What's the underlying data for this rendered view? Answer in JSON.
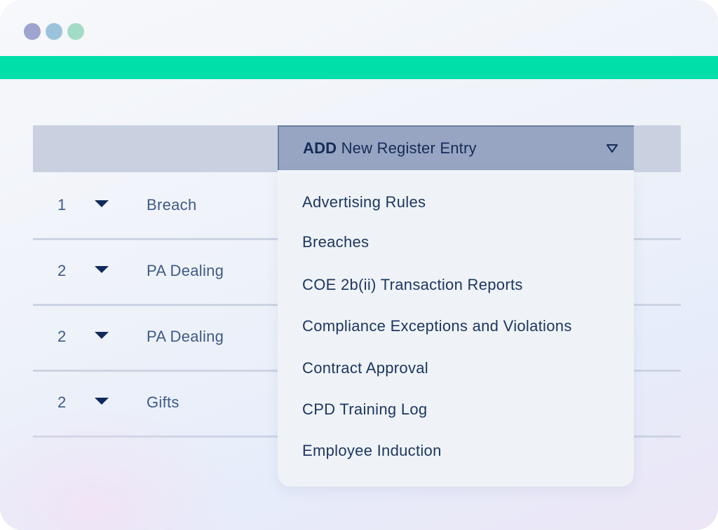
{
  "register_table": {
    "rows": [
      {
        "number": "1",
        "name": "Breach"
      },
      {
        "number": "2",
        "name": "PA Dealing"
      },
      {
        "number": "2",
        "name": "PA Dealing"
      },
      {
        "number": "2",
        "name": "Gifts"
      }
    ]
  },
  "add_dropdown": {
    "bold_label": "ADD",
    "label": "New Register Entry",
    "icon": "caret-down-outline-icon",
    "options": [
      "Advertising Rules",
      "Breaches",
      "COE 2b(ii) Transaction Reports",
      "Compliance Exceptions and Violations",
      "Contract Approval",
      "CPD Training Log",
      "Employee Induction"
    ]
  },
  "colors": {
    "accent": "#00dfa9",
    "header_band": "#c9d1e1",
    "dropdown_button": "#97a5c2",
    "text_dark": "#142b58"
  }
}
